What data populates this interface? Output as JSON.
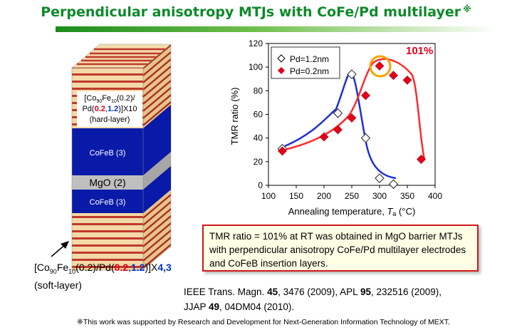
{
  "title": "Perpendicular anisotropy MTJs with CoFe/Pd multilayer",
  "title_mark": "※",
  "stack": {
    "hard_layer": {
      "prefix": "[Co",
      "co_sub": "90",
      "fe": "Fe",
      "fe_sub": "10",
      "mid": "(0.2)/",
      "pd_open": "Pd(",
      "v1": "0.2",
      "comma": ",",
      "v2": "1.2",
      "close": ")]X10",
      "role": "(hard-layer)"
    },
    "cofeb_top": "CoFeB (3)",
    "mgo": "MgO (2)",
    "cofeb_bottom": "CoFeB (3)",
    "soft_layer": {
      "prefix": "[Co",
      "co_sub": "90",
      "fe": "Fe",
      "fe_sub": "10",
      "mid": "(0.2)/Pd(",
      "v1": "0.2",
      "comma": ",",
      "v2": "1.2",
      "close": ")]X",
      "n": "4,3",
      "role": "(soft-layer)"
    }
  },
  "chart_data": {
    "type": "scatter",
    "xlabel": "Annealing temperature, ",
    "xlabel_var": "T",
    "xlabel_sub": "a",
    "xlabel_unit": " (°C)",
    "ylabel": "TMR ratio (%)",
    "xlim": [
      100,
      400
    ],
    "ylim": [
      0,
      120
    ],
    "xticks": [
      "100",
      "150",
      "200",
      "250",
      "300",
      "350",
      "400"
    ],
    "yticks": [
      "0",
      "20",
      "40",
      "60",
      "80",
      "100",
      "120"
    ],
    "legend_position": "top-left",
    "annotation": "101%",
    "highlight_point": [
      300,
      101
    ],
    "series": [
      {
        "name": "Pd=1.2nm",
        "marker": "open-diamond",
        "color": "#0000cc",
        "points": [
          [
            125,
            31
          ],
          [
            225,
            61
          ],
          [
            250,
            94
          ],
          [
            275,
            40
          ],
          [
            300,
            6
          ],
          [
            325,
            1
          ]
        ]
      },
      {
        "name": "Pd=0.2nm",
        "marker": "filled-diamond",
        "color": "#e0001b",
        "points": [
          [
            125,
            29
          ],
          [
            200,
            41
          ],
          [
            225,
            47
          ],
          [
            250,
            57
          ],
          [
            275,
            76
          ],
          [
            300,
            101
          ],
          [
            325,
            93
          ],
          [
            350,
            89
          ],
          [
            375,
            22
          ]
        ]
      }
    ]
  },
  "callout": {
    "pre": "TMR ratio = ",
    "value": "101%",
    "post": " at RT was obtained in MgO barrier MTJs with perpendicular anisotropy CoFe/Pd multilayer electrodes and CoFeB insertion layers."
  },
  "refs": {
    "r1_journal": "IEEE Trans. Magn. ",
    "r1_vol": "45",
    "r1_rest": ", 3476 (2009), APL ",
    "r2_vol": "95",
    "r2_rest": ", 232516 (2009),",
    "r3_journal": "JJAP ",
    "r3_vol": "49",
    "r3_rest": ", 04DM04 (2010)."
  },
  "footnote": "※This work was supported by Research and Development for Next-Generation Information Technology of MEXT."
}
